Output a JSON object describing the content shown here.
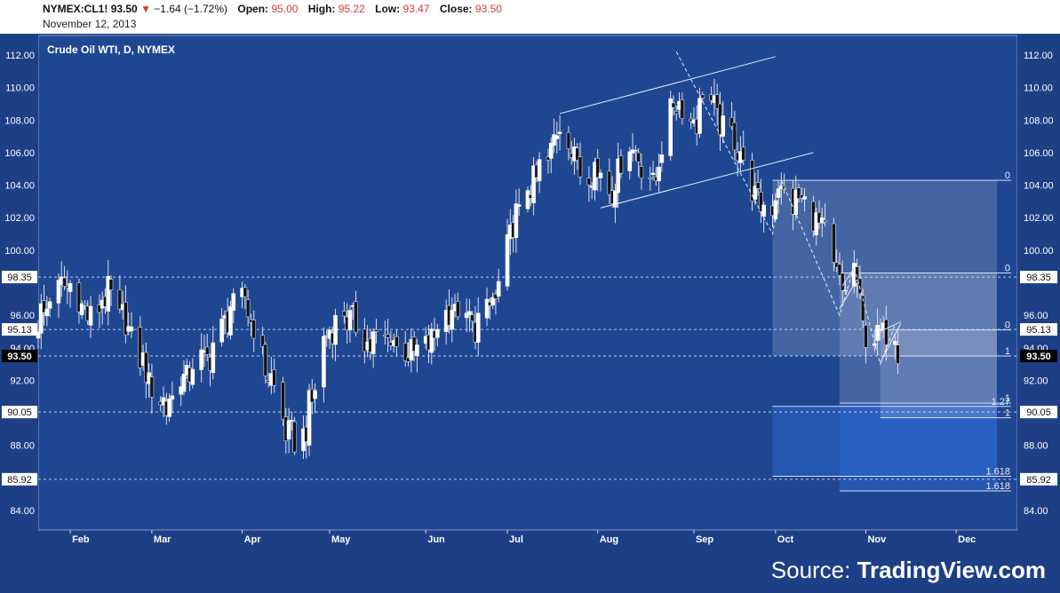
{
  "header": {
    "symbol": "NYMEX:CL1!",
    "last": "93.50",
    "change": "−1.64 (−1.72%)",
    "open_label": "Open:",
    "open": "95.00",
    "high_label": "High:",
    "high": "95.22",
    "low_label": "Low:",
    "low": "93.47",
    "close_label": "Close:",
    "close": "93.50",
    "date": "November 12, 2013"
  },
  "source": {
    "prefix": "Source: ",
    "name": "TradingView.com"
  },
  "colors": {
    "background": "#1d3f86",
    "plot_background": "#1f4791",
    "axis_panel": "#ffffff",
    "candle_up": "#ffffff",
    "candle_down": "#111111",
    "current_price": "#000000"
  },
  "chart_data": {
    "type": "candlestick",
    "title": "Crude Oil WTI, D, NYMEX",
    "y_range": [
      82.8,
      113.2
    ],
    "y_ticks": [
      "112.00",
      "110.00",
      "108.00",
      "106.00",
      "104.00",
      "102.00",
      "100.00",
      "96.00",
      "94.00",
      "92.00",
      "88.00",
      "84.00"
    ],
    "x_range": [
      "2013-01-21",
      "2013-12-23"
    ],
    "x_ticks": [
      {
        "label": "Feb",
        "date": "2013-02-01"
      },
      {
        "label": "Mar",
        "date": "2013-03-01"
      },
      {
        "label": "Apr",
        "date": "2013-04-01"
      },
      {
        "label": "May",
        "date": "2013-05-01"
      },
      {
        "label": "Jun",
        "date": "2013-06-03"
      },
      {
        "label": "Jul",
        "date": "2013-07-01"
      },
      {
        "label": "Aug",
        "date": "2013-08-01"
      },
      {
        "label": "Sep",
        "date": "2013-09-03"
      },
      {
        "label": "Oct",
        "date": "2013-10-01"
      },
      {
        "label": "Nov",
        "date": "2013-11-01"
      },
      {
        "label": "Dec",
        "date": "2013-12-02"
      }
    ],
    "price_labels": [
      {
        "label": "98.35",
        "value": 98.35
      },
      {
        "label": "95.13",
        "value": 95.13
      },
      {
        "label": "93.50",
        "value": 93.5,
        "current": true
      },
      {
        "label": "90.05",
        "value": 90.05
      },
      {
        "label": "85.92",
        "value": 85.92
      }
    ],
    "anchors": [
      {
        "date": "2013-01-21",
        "price": 95.7
      },
      {
        "date": "2013-01-28",
        "price": 97.8
      },
      {
        "date": "2013-02-01",
        "price": 97.6
      },
      {
        "date": "2013-02-08",
        "price": 95.7
      },
      {
        "date": "2013-02-14",
        "price": 97.3
      },
      {
        "date": "2013-02-21",
        "price": 95.0
      },
      {
        "date": "2013-02-28",
        "price": 92.1
      },
      {
        "date": "2013-03-06",
        "price": 90.4
      },
      {
        "date": "2013-03-13",
        "price": 92.5
      },
      {
        "date": "2013-03-21",
        "price": 93.7
      },
      {
        "date": "2013-03-28",
        "price": 96.3
      },
      {
        "date": "2013-04-02",
        "price": 97.0
      },
      {
        "date": "2013-04-08",
        "price": 93.4
      },
      {
        "date": "2013-04-12",
        "price": 91.3
      },
      {
        "date": "2013-04-16",
        "price": 88.6
      },
      {
        "date": "2013-04-22",
        "price": 88.4
      },
      {
        "date": "2013-04-29",
        "price": 94.4
      },
      {
        "date": "2013-05-06",
        "price": 96.1
      },
      {
        "date": "2013-05-14",
        "price": 94.3
      },
      {
        "date": "2013-05-22",
        "price": 94.4
      },
      {
        "date": "2013-05-30",
        "price": 93.6
      },
      {
        "date": "2013-06-05",
        "price": 94.7
      },
      {
        "date": "2013-06-12",
        "price": 96.3
      },
      {
        "date": "2013-06-20",
        "price": 95.4
      },
      {
        "date": "2013-06-27",
        "price": 97.0
      },
      {
        "date": "2013-07-02",
        "price": 101.2
      },
      {
        "date": "2013-07-09",
        "price": 104.0
      },
      {
        "date": "2013-07-16",
        "price": 106.0
      },
      {
        "date": "2013-07-19",
        "price": 108.1
      },
      {
        "date": "2013-07-25",
        "price": 105.3
      },
      {
        "date": "2013-07-31",
        "price": 105.0
      },
      {
        "date": "2013-08-06",
        "price": 103.9
      },
      {
        "date": "2013-08-12",
        "price": 106.6
      },
      {
        "date": "2013-08-20",
        "price": 104.0
      },
      {
        "date": "2013-08-27",
        "price": 109.0
      },
      {
        "date": "2013-08-29",
        "price": 108.9
      },
      {
        "date": "2013-09-04",
        "price": 107.8
      },
      {
        "date": "2013-09-06",
        "price": 110.2
      },
      {
        "date": "2013-09-12",
        "price": 107.7
      },
      {
        "date": "2013-09-18",
        "price": 106.4
      },
      {
        "date": "2013-09-24",
        "price": 103.1
      },
      {
        "date": "2013-09-30",
        "price": 102.3
      },
      {
        "date": "2013-10-02",
        "price": 104.1
      },
      {
        "date": "2013-10-07",
        "price": 103.0
      },
      {
        "date": "2013-10-14",
        "price": 102.4
      },
      {
        "date": "2013-10-18",
        "price": 100.8
      },
      {
        "date": "2013-10-24",
        "price": 97.1
      },
      {
        "date": "2013-10-28",
        "price": 98.6
      },
      {
        "date": "2013-11-01",
        "price": 94.6
      },
      {
        "date": "2013-11-06",
        "price": 94.8
      },
      {
        "date": "2013-11-08",
        "price": 94.6
      },
      {
        "date": "2013-11-11",
        "price": 95.1
      },
      {
        "date": "2013-11-12",
        "price": 93.5
      }
    ],
    "drawings": {
      "channel_upper": [
        {
          "date": "2013-07-19",
          "price": 108.4
        },
        {
          "date": "2013-10-01",
          "price": 111.9
        }
      ],
      "channel_lower": [
        {
          "date": "2013-08-02",
          "price": 102.6
        },
        {
          "date": "2013-10-14",
          "price": 106.0
        }
      ],
      "downtrend_dashed": [
        {
          "date": "2013-08-28",
          "price": 112.2
        },
        {
          "date": "2013-09-30",
          "price": 101.0
        },
        {
          "date": "2013-10-03",
          "price": 104.3
        },
        {
          "date": "2013-10-23",
          "price": 96.0
        },
        {
          "date": "2013-10-28",
          "price": 99.0
        },
        {
          "date": "2013-11-06",
          "price": 93.0
        },
        {
          "date": "2013-11-11",
          "price": 95.4
        }
      ],
      "flag_upper": [
        {
          "date": "2013-10-24",
          "price": 97.8
        },
        {
          "date": "2013-10-29",
          "price": 99.2
        }
      ],
      "flag_lower": [
        {
          "date": "2013-10-23",
          "price": 96.4
        },
        {
          "date": "2013-10-29",
          "price": 98.2
        }
      ],
      "pennant_upper": [
        {
          "date": "2013-11-06",
          "price": 95.0
        },
        {
          "date": "2013-11-13",
          "price": 95.6
        }
      ],
      "pennant_lower": [
        {
          "date": "2013-11-06",
          "price": 93.1
        },
        {
          "date": "2013-11-13",
          "price": 95.5
        }
      ]
    },
    "fib_boxes": [
      {
        "start": "2013-09-30",
        "end": "2013-12-16",
        "top": 104.3,
        "bottom": 93.5,
        "style": "light"
      },
      {
        "start": "2013-09-30",
        "end": "2013-12-16",
        "top": 90.4,
        "bottom": 86.1,
        "style": "blue"
      },
      {
        "start": "2013-10-23",
        "end": "2013-12-16",
        "top": 98.6,
        "bottom": 90.6,
        "style": "light"
      },
      {
        "start": "2013-10-23",
        "end": "2013-12-16",
        "top": 90.6,
        "bottom": 85.2,
        "style": "blue"
      },
      {
        "start": "2013-11-06",
        "end": "2013-12-16",
        "top": 95.1,
        "bottom": 89.7,
        "style": "light"
      }
    ],
    "fib_levels": [
      {
        "label": "0",
        "value": 104.3,
        "start": "2013-09-30"
      },
      {
        "label": "0",
        "value": 98.6,
        "start": "2013-10-23"
      },
      {
        "label": "0",
        "value": 95.1,
        "start": "2013-11-06"
      },
      {
        "label": "1",
        "value": 93.5,
        "start": "2013-11-06"
      },
      {
        "label": "1.27",
        "value": 90.4,
        "start": "2013-09-30"
      },
      {
        "label": "1",
        "value": 90.6,
        "start": "2013-10-23"
      },
      {
        "label": "1",
        "value": 89.7,
        "start": "2013-11-06"
      },
      {
        "label": "1.618",
        "value": 86.1,
        "start": "2013-09-30"
      },
      {
        "label": "1.618",
        "value": 85.2,
        "start": "2013-10-23"
      }
    ]
  }
}
